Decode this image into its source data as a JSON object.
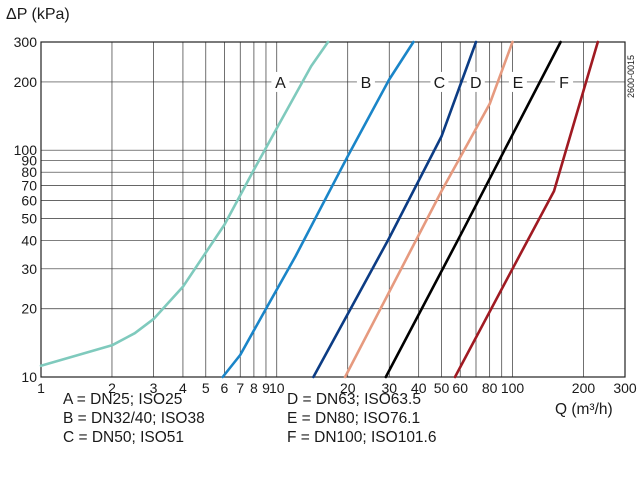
{
  "chart_data": {
    "type": "line",
    "title": "",
    "ylabel": "ΔP (kPa)",
    "xlabel": "Q (m³/h)",
    "x_scale": "log",
    "y_scale": "log",
    "xlim": [
      1,
      300
    ],
    "ylim": [
      10,
      300
    ],
    "grid": true,
    "code": "2600-0015",
    "x_ticks": [
      {
        "value": 1,
        "label": "1"
      },
      {
        "value": 2,
        "label": "2"
      },
      {
        "value": 3,
        "label": "3"
      },
      {
        "value": 4,
        "label": "4"
      },
      {
        "value": 5,
        "label": "5"
      },
      {
        "value": 6,
        "label": "6"
      },
      {
        "value": 7,
        "label": "7"
      },
      {
        "value": 8,
        "label": "8"
      },
      {
        "value": 9,
        "label": "9"
      },
      {
        "value": 10,
        "label": "10"
      },
      {
        "value": 20,
        "label": "20"
      },
      {
        "value": 30,
        "label": "30"
      },
      {
        "value": 40,
        "label": "40"
      },
      {
        "value": 50,
        "label": "50"
      },
      {
        "value": 60,
        "label": "60"
      },
      {
        "value": 80,
        "label": "80"
      },
      {
        "value": 100,
        "label": "100"
      },
      {
        "value": 200,
        "label": "200"
      },
      {
        "value": 300,
        "label": "300"
      }
    ],
    "y_ticks": [
      {
        "value": 10,
        "label": "10"
      },
      {
        "value": 20,
        "label": "20"
      },
      {
        "value": 30,
        "label": "30"
      },
      {
        "value": 40,
        "label": "40"
      },
      {
        "value": 50,
        "label": "50"
      },
      {
        "value": 60,
        "label": "60"
      },
      {
        "value": 70,
        "label": "70"
      },
      {
        "value": 80,
        "label": "80"
      },
      {
        "value": 90,
        "label": "90"
      },
      {
        "value": 100,
        "label": "100"
      },
      {
        "value": 200,
        "label": "200"
      },
      {
        "value": 300,
        "label": "300"
      }
    ],
    "series": [
      {
        "label": "A",
        "color": "#7fcabd",
        "points": [
          [
            1,
            11.2
          ],
          [
            2,
            13.8
          ],
          [
            2.5,
            15.6
          ],
          [
            3,
            18
          ],
          [
            4,
            25
          ],
          [
            6,
            47
          ],
          [
            8,
            82
          ],
          [
            10,
            125
          ],
          [
            14,
            235
          ],
          [
            16.5,
            300
          ]
        ]
      },
      {
        "label": "B",
        "color": "#1a85c8",
        "points": [
          [
            5.9,
            10
          ],
          [
            7,
            12.5
          ],
          [
            9,
            20
          ],
          [
            12,
            34
          ],
          [
            20,
            94
          ],
          [
            30,
            205
          ],
          [
            38,
            300
          ]
        ]
      },
      {
        "label": "C",
        "color": "#0c3c84",
        "points": [
          [
            14.3,
            10
          ],
          [
            30,
            41
          ],
          [
            50,
            115
          ],
          [
            70,
            300
          ]
        ]
      },
      {
        "label": "D",
        "color": "#e69a7f",
        "points": [
          [
            19.5,
            10
          ],
          [
            50,
            66
          ],
          [
            80,
            160
          ],
          [
            100,
            300
          ]
        ]
      },
      {
        "label": "E",
        "color": "#000000",
        "points": [
          [
            29,
            10
          ],
          [
            60,
            42
          ],
          [
            100,
            117
          ],
          [
            160,
            300
          ]
        ]
      },
      {
        "label": "F",
        "color": "#a01a22",
        "points": [
          [
            57,
            10
          ],
          [
            100,
            30
          ],
          [
            150,
            66
          ],
          [
            230,
            300
          ]
        ]
      }
    ],
    "legend": [
      [
        "A = DN25; ISO25",
        "B = DN32/40; ISO38",
        "C = DN50; ISO51"
      ],
      [
        "D = DN63; ISO63.5",
        "E = DN80; ISO76.1",
        "F = DN100; ISO101.6"
      ]
    ]
  }
}
